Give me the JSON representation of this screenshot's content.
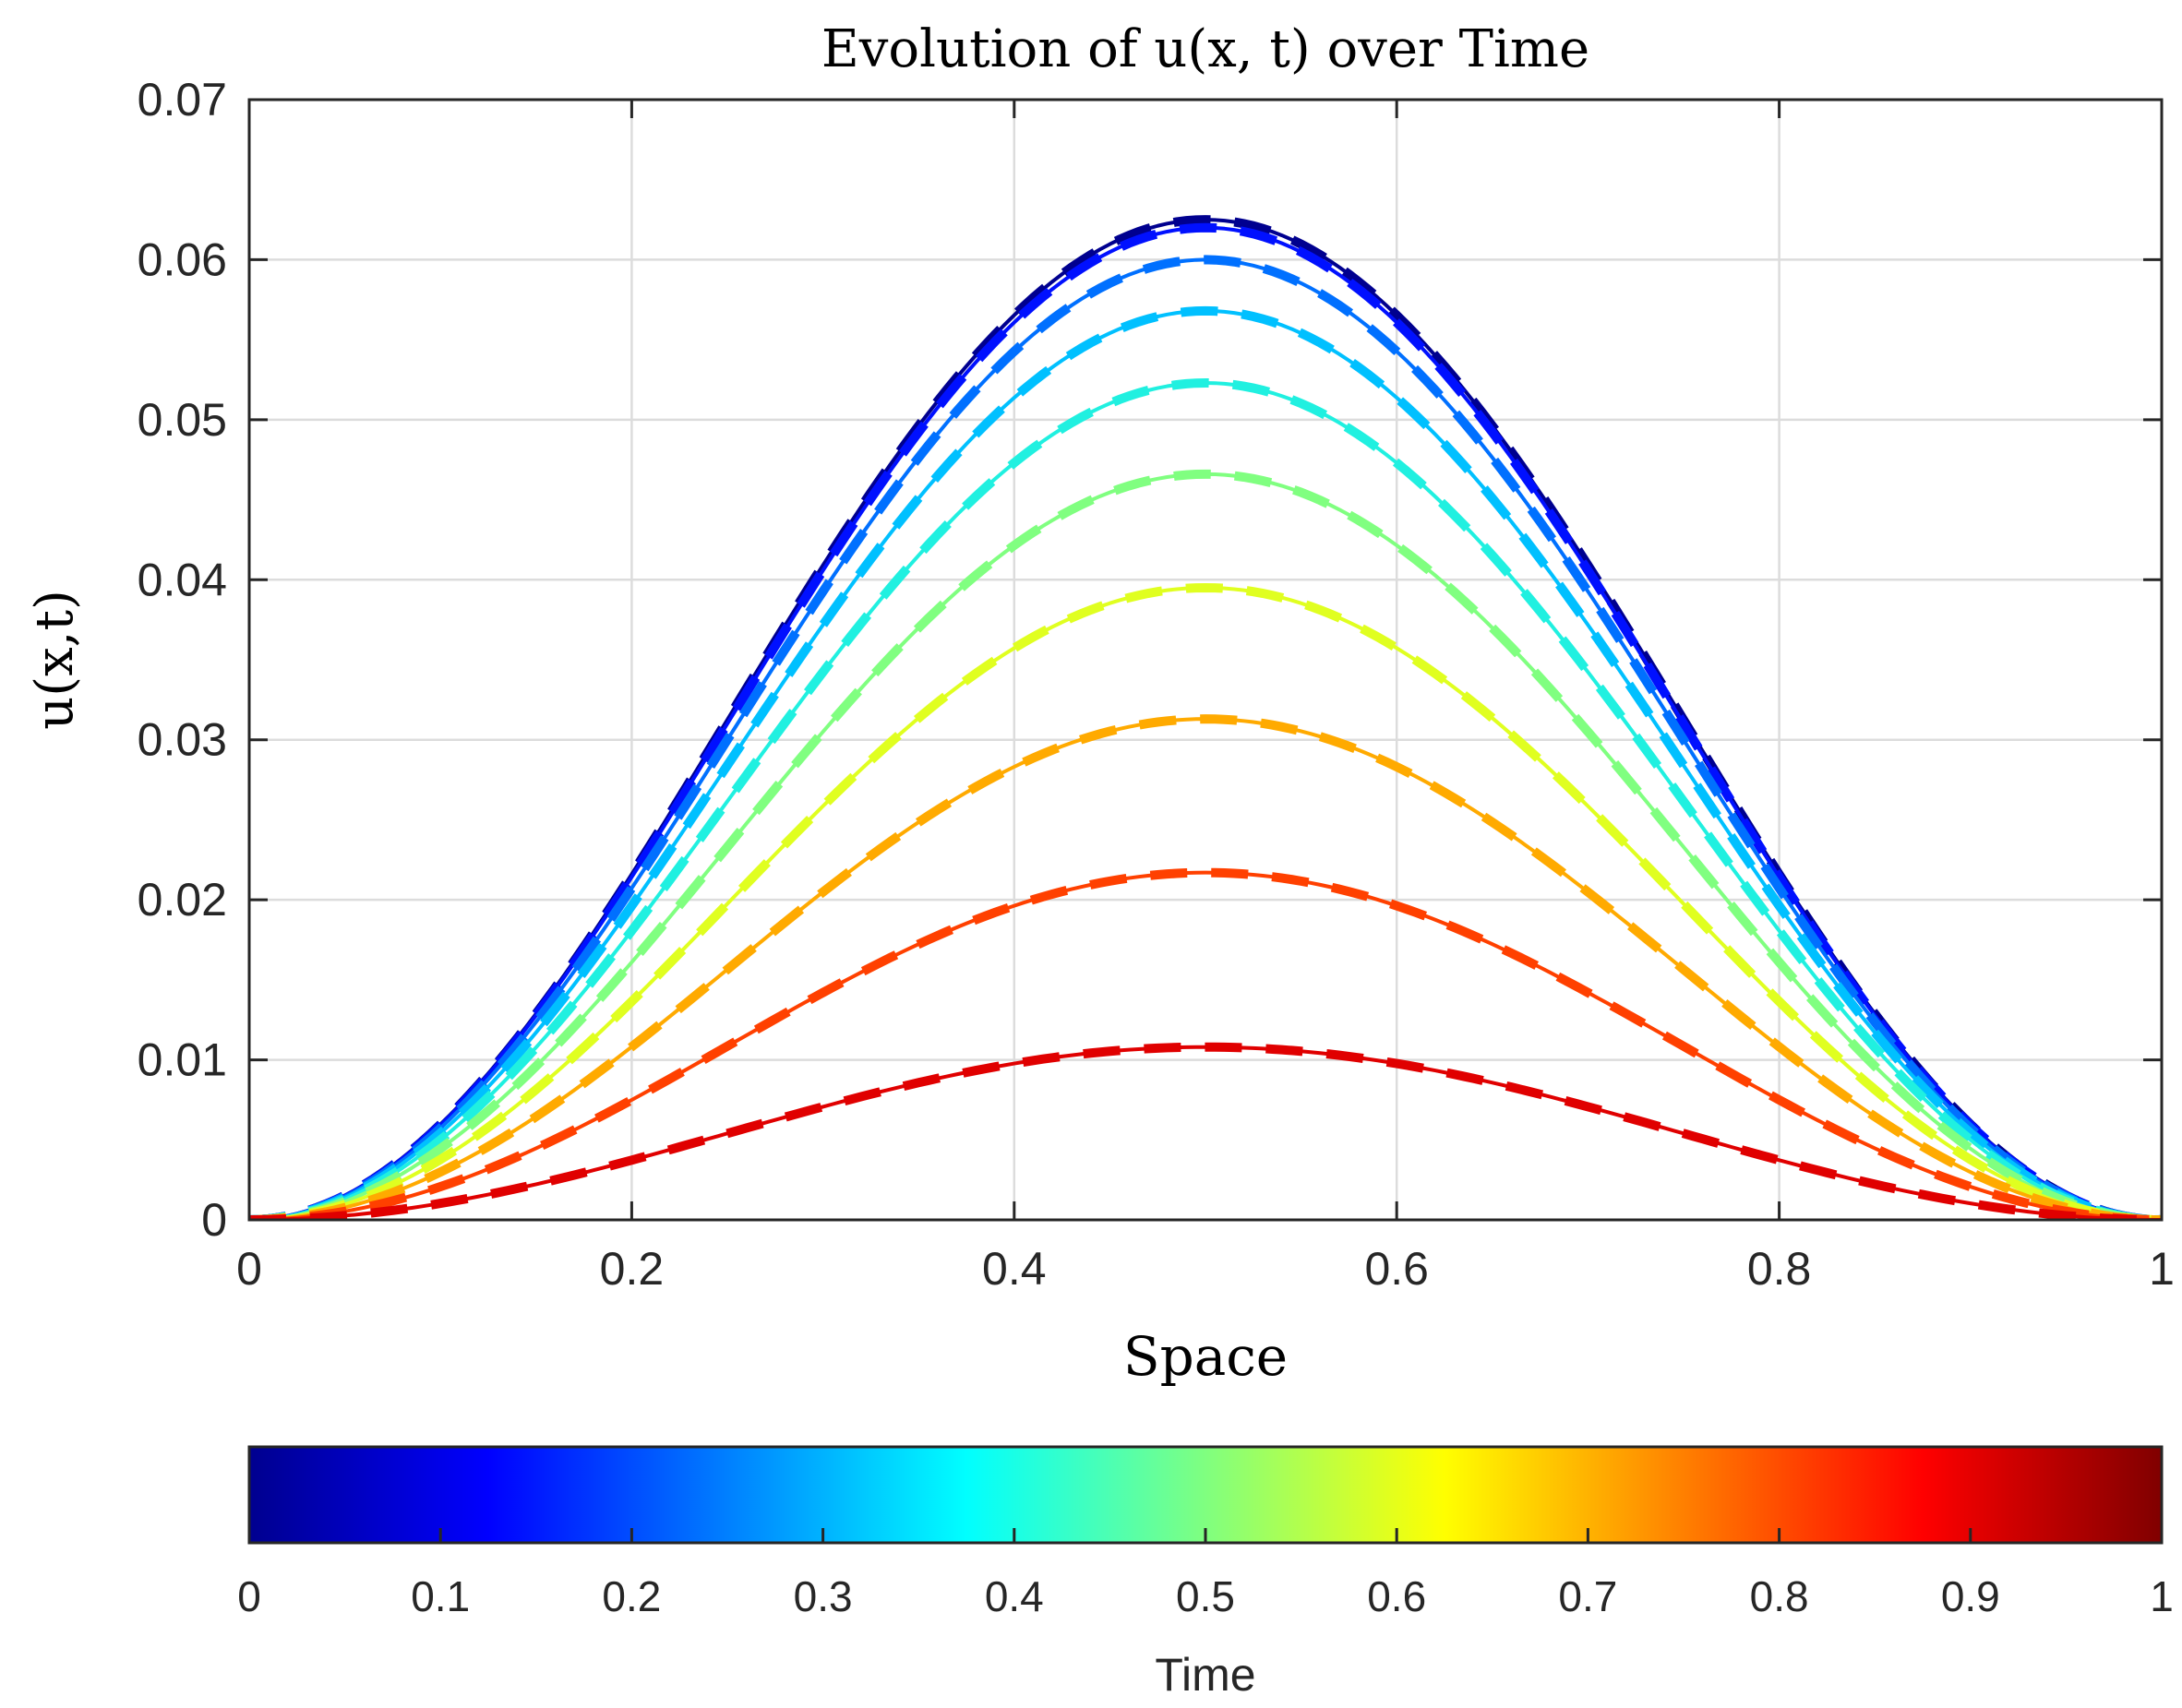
{
  "chart_data": {
    "type": "line",
    "title": "Evolution of u(x, t) over Time",
    "xlabel": "Space",
    "ylabel": "u(x,t)",
    "xlim": [
      0,
      1
    ],
    "ylim": [
      0,
      0.07
    ],
    "grid": true,
    "xticks": [
      "0",
      "0.2",
      "0.4",
      "0.6",
      "0.8",
      "1"
    ],
    "yticks": [
      "0",
      "0.01",
      "0.02",
      "0.03",
      "0.04",
      "0.05",
      "0.06",
      "0.07"
    ],
    "x_tick_values": [
      0,
      0.2,
      0.4,
      0.6,
      0.8,
      1
    ],
    "y_tick_values": [
      0,
      0.01,
      0.02,
      0.03,
      0.04,
      0.05,
      0.06,
      0.07
    ],
    "series_shape": "sin(pi*x)^2",
    "series": [
      {
        "name": "t = 0.0",
        "time": 0.0,
        "peak": 0.0625,
        "color": "#00008f"
      },
      {
        "name": "t = 0.1",
        "time": 0.1,
        "peak": 0.062,
        "color": "#0010ff"
      },
      {
        "name": "t = 0.2",
        "time": 0.2,
        "peak": 0.06,
        "color": "#0070ff"
      },
      {
        "name": "t = 0.3",
        "time": 0.3,
        "peak": 0.0568,
        "color": "#00c0ff"
      },
      {
        "name": "t = 0.4",
        "time": 0.4,
        "peak": 0.0523,
        "color": "#20f0e0"
      },
      {
        "name": "t = 0.5",
        "time": 0.5,
        "peak": 0.0466,
        "color": "#80ff80"
      },
      {
        "name": "t = 0.6",
        "time": 0.6,
        "peak": 0.0395,
        "color": "#e0ff20"
      },
      {
        "name": "t = 0.7",
        "time": 0.7,
        "peak": 0.0313,
        "color": "#ffaa00"
      },
      {
        "name": "t = 0.8",
        "time": 0.8,
        "peak": 0.0217,
        "color": "#ff4000"
      },
      {
        "name": "t = 0.9",
        "time": 0.9,
        "peak": 0.0108,
        "color": "#e00000"
      }
    ],
    "line_styles": {
      "exact": "solid",
      "approx": "dashed"
    },
    "colorbar": {
      "label": "Time",
      "colormap": "jet",
      "limits": [
        0,
        1
      ],
      "ticks": [
        "0",
        "0.1",
        "0.2",
        "0.3",
        "0.4",
        "0.5",
        "0.6",
        "0.7",
        "0.8",
        "0.9",
        "1"
      ],
      "tick_values": [
        0,
        0.1,
        0.2,
        0.3,
        0.4,
        0.5,
        0.6,
        0.7,
        0.8,
        0.9,
        1
      ],
      "stops": [
        "#00008f",
        "#0000ff",
        "#00ffff",
        "#ffff00",
        "#ff0000",
        "#800000"
      ],
      "stop_positions": [
        0,
        0.125,
        0.375,
        0.625,
        0.875,
        1
      ]
    }
  }
}
